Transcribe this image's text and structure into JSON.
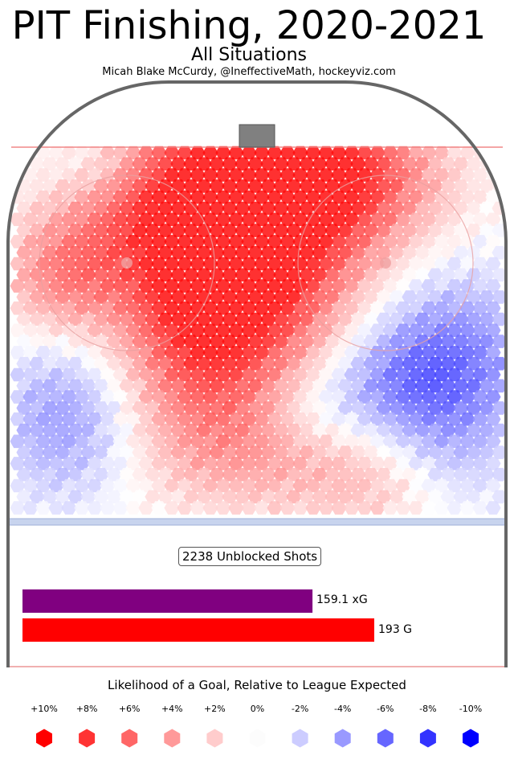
{
  "title": "PIT Finishing, 2020-2021",
  "subtitle": "All Situations",
  "byline": "Micah Blake McCurdy, @IneffectiveMath, hockeyviz.com",
  "unblocked_shots_label": "2238 Unblocked Shots",
  "legend": {
    "title": "Likelihood of a Goal, Relative to League Expected",
    "labels": [
      "+10%",
      "+8%",
      "+6%",
      "+4%",
      "+2%",
      "0%",
      "-2%",
      "-4%",
      "-6%",
      "-8%",
      "-10%"
    ],
    "colors": [
      "#ff0000",
      "#ff3333",
      "#ff6666",
      "#ff9999",
      "#ffcccc",
      "#fcfcfc",
      "#ccccff",
      "#9999ff",
      "#6666ff",
      "#3333ff",
      "#0000ff"
    ]
  },
  "chart_data": {
    "type": "bar",
    "orientation": "horizontal",
    "categories": [
      "xG",
      "G"
    ],
    "values": [
      159.1,
      193
    ],
    "value_labels": [
      "159.1 xG",
      "193 G"
    ],
    "colors": [
      "#800080",
      "#ff0000"
    ],
    "heatmap": {
      "description_scale": "relative goal likelihood vs league expected",
      "range": [
        "-10%",
        "+10%"
      ]
    }
  }
}
